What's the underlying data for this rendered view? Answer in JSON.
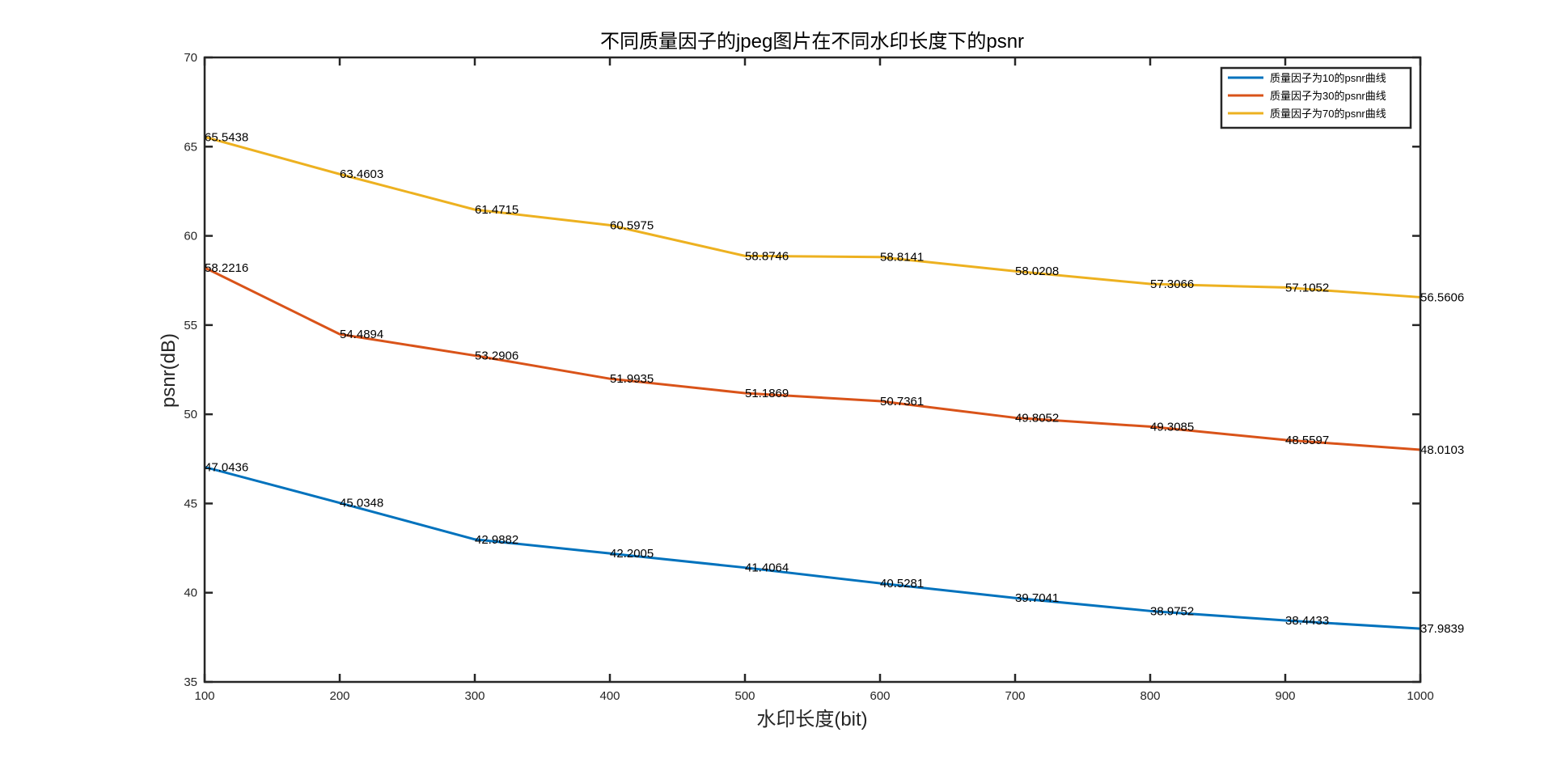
{
  "chart_data": {
    "type": "line",
    "title": "不同质量因子的jpeg图片在不同水印长度下的psnr",
    "xlabel": "水印长度(bit)",
    "ylabel": "psnr(dB)",
    "xlim": [
      100,
      1000
    ],
    "ylim": [
      35,
      70
    ],
    "xticks": [
      "100",
      "200",
      "300",
      "400",
      "500",
      "600",
      "700",
      "800",
      "900",
      "1000"
    ],
    "yticks": [
      "35",
      "40",
      "45",
      "50",
      "55",
      "60",
      "65",
      "70"
    ],
    "grid": false,
    "legend_position": "top-right",
    "x": [
      100,
      200,
      300,
      400,
      500,
      600,
      700,
      800,
      900,
      1000
    ],
    "series": [
      {
        "name": "质量因子为10的psnr曲线",
        "color": "#0072BD",
        "values": [
          47.0436,
          45.0348,
          42.9882,
          42.2005,
          41.4064,
          40.5281,
          39.7041,
          38.9752,
          38.4433,
          37.9839
        ],
        "labels": [
          "47.0436",
          "45.0348",
          "42.9882",
          "42.2005",
          "41.4064",
          "40.5281",
          "39.7041",
          "38.9752",
          "38.4433",
          "37.9839"
        ]
      },
      {
        "name": "质量因子为30的psnr曲线",
        "color": "#D95319",
        "values": [
          58.2216,
          54.4894,
          53.2906,
          51.9935,
          51.1869,
          50.7361,
          49.8052,
          49.3085,
          48.5597,
          48.0103
        ],
        "labels": [
          "58.2216",
          "54.4894",
          "53.2906",
          "51.9935",
          "51.1869",
          "50.7361",
          "49.8052",
          "49.3085",
          "48.5597",
          "48.0103"
        ]
      },
      {
        "name": "质量因子为70的psnr曲线",
        "color": "#EDB120",
        "values": [
          65.5438,
          63.4603,
          61.4715,
          60.5975,
          58.8746,
          58.8141,
          58.0208,
          57.3066,
          57.1052,
          56.5606
        ],
        "labels": [
          "65.5438",
          "63.4603",
          "61.4715",
          "60.5975",
          "58.8746",
          "58.8141",
          "58.0208",
          "57.3066",
          "57.1052",
          "56.5606"
        ]
      }
    ]
  }
}
